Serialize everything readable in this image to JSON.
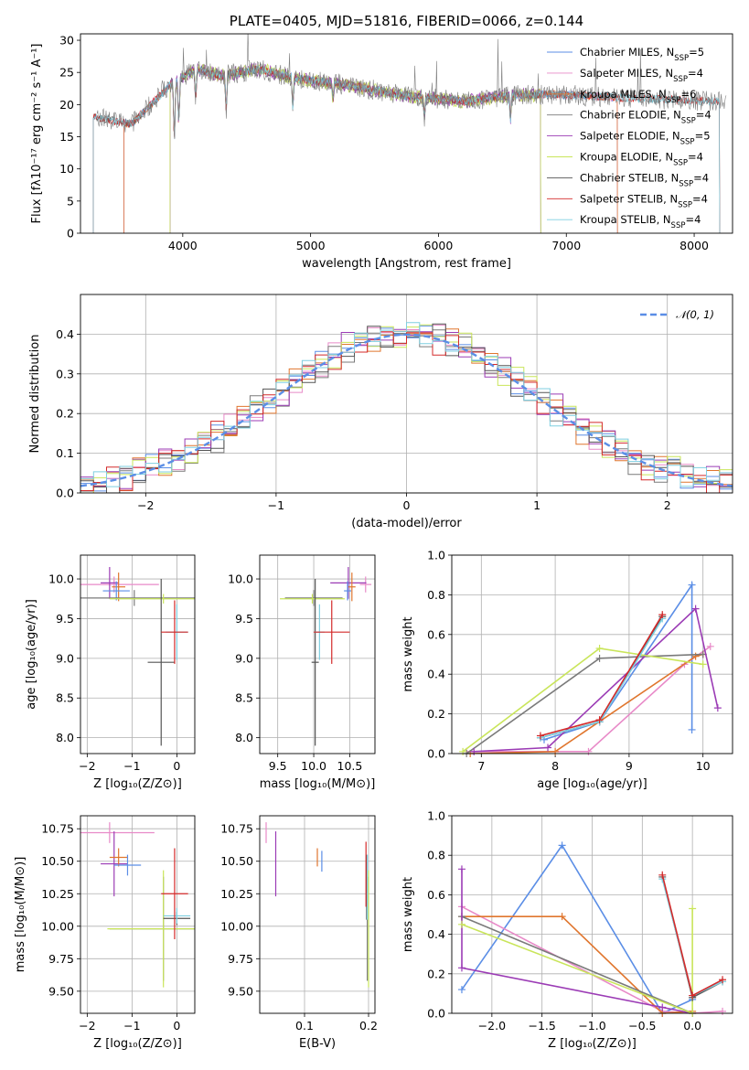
{
  "colors": {
    "Chabrier MILES": "#5b8ee6",
    "Salpeter MILES": "#e88ac8",
    "Kroupa MILES": "#e0762e",
    "Chabrier ELODIE": "#7a7a7a",
    "Salpeter ELODIE": "#9b3bb5",
    "Kroupa ELODIE": "#c9e55a",
    "Chabrier STELIB": "#555555",
    "Salpeter STELIB": "#d42a2a",
    "Kroupa STELIB": "#7fcfe0",
    "gauss": "#5b8ee6",
    "grid": "#b0b0b0"
  },
  "chart_data": [
    {
      "id": "spectrum",
      "type": "line",
      "title": "PLATE=0405, MJD=51816, FIBERID=0066, z=0.144",
      "xlabel": "wavelength [Angstrom, rest frame]",
      "ylabel": "Flux [fλ10⁻¹⁷ erg cm⁻² s⁻¹ A⁻¹]",
      "xlim": [
        3200,
        8300
      ],
      "ylim": [
        0,
        31
      ],
      "xticks": [
        "4000",
        "5000",
        "6000",
        "7000",
        "8000"
      ],
      "yticks": [
        "0",
        "5",
        "10",
        "15",
        "20",
        "25",
        "30"
      ],
      "grid": false,
      "legend_position": "top-right",
      "series": [
        {
          "name": "Chabrier MILES, N_SSP=5",
          "label_base": "Chabrier MILES, N",
          "label_sub": "SSP",
          "label_tail": "=5"
        },
        {
          "name": "Salpeter MILES, N_SSP=4",
          "label_base": "Salpeter MILES, N",
          "label_sub": "SSP",
          "label_tail": "=4"
        },
        {
          "name": "Kroupa MILES, N_SSP=6",
          "label_base": "Kroupa MILES, N",
          "label_sub": "SSP",
          "label_tail": "=6"
        },
        {
          "name": "Chabrier ELODIE, N_SSP=4",
          "label_base": "Chabrier ELODIE, N",
          "label_sub": "SSP",
          "label_tail": "=4"
        },
        {
          "name": "Salpeter ELODIE, N_SSP=5",
          "label_base": "Salpeter ELODIE, N",
          "label_sub": "SSP",
          "label_tail": "=5"
        },
        {
          "name": "Kroupa ELODIE, N_SSP=4",
          "label_base": "Kroupa ELODIE, N",
          "label_sub": "SSP",
          "label_tail": "=4"
        },
        {
          "name": "Chabrier STELIB, N_SSP=4",
          "label_base": "Chabrier STELIB, N",
          "label_sub": "SSP",
          "label_tail": "=4"
        },
        {
          "name": "Salpeter STELIB, N_SSP=4",
          "label_base": "Salpeter STELIB, N",
          "label_sub": "SSP",
          "label_tail": "=4"
        },
        {
          "name": "Kroupa STELIB, N_SSP=4",
          "label_base": "Kroupa STELIB, N",
          "label_sub": "SSP",
          "label_tail": "=4"
        }
      ],
      "model_start_wavelength": {
        "MILES": 3540,
        "ELODIE": 3900,
        "STELIB": 3300
      },
      "model_end_wavelength": {
        "MILES": 7400,
        "ELODIE": 6800,
        "STELIB": 8200
      },
      "continuum": [
        [
          3300,
          18
        ],
        [
          3600,
          17
        ],
        [
          3900,
          23
        ],
        [
          4100,
          25.5
        ],
        [
          4300,
          24.5
        ],
        [
          4600,
          25.5
        ],
        [
          4900,
          24
        ],
        [
          5300,
          23
        ],
        [
          5700,
          21.5
        ],
        [
          6200,
          20.5
        ],
        [
          6600,
          21.5
        ],
        [
          7000,
          21.5
        ],
        [
          7500,
          21
        ],
        [
          8200,
          20.5
        ]
      ]
    },
    {
      "id": "residuals",
      "type": "bar",
      "xlabel": "(data-model)/error",
      "ylabel": "Normed distribution",
      "xlim": [
        -2.5,
        2.5
      ],
      "ylim": [
        0,
        0.5
      ],
      "xticks": [
        "−2",
        "−1",
        "0",
        "1",
        "2"
      ],
      "yticks": [
        "0.0",
        "0.1",
        "0.2",
        "0.3",
        "0.4"
      ],
      "grid": true,
      "legend": "𝒩(0, 1)",
      "legend_position": "top-right",
      "bin_width": 0.1,
      "gauss_mean": 0,
      "gauss_sigma": 1,
      "offsets": [
        [
          0.01,
          -0.02,
          0.015,
          0.0,
          -0.01,
          0.02,
          -0.015,
          0.01
        ],
        [
          -0.015,
          0.02,
          -0.01,
          0.025,
          0.01,
          -0.02,
          0.015,
          -0.01
        ],
        [
          0.02,
          -0.01,
          0.02,
          -0.015,
          0.02,
          0.01,
          -0.02,
          0.015
        ],
        [
          -0.01,
          0.015,
          -0.02,
          0.01,
          -0.015,
          0.02,
          0.01,
          -0.02
        ],
        [
          0.025,
          -0.015,
          0.01,
          -0.02,
          0.03,
          -0.01,
          0.02,
          -0.015
        ],
        [
          -0.02,
          0.025,
          0.02,
          -0.01,
          0.015,
          0.03,
          -0.015,
          0.01
        ],
        [
          0.015,
          -0.02,
          -0.015,
          0.02,
          -0.01,
          0.015,
          0.02,
          -0.01
        ],
        [
          -0.01,
          0.01,
          0.025,
          -0.02,
          0.01,
          -0.015,
          0.01,
          0.02
        ],
        [
          0.02,
          0.015,
          -0.01,
          0.015,
          -0.02,
          0.01,
          -0.01,
          0.015
        ]
      ]
    },
    {
      "id": "age-vs-Z",
      "type": "scatter",
      "xlabel": "Z [log₁₀(Z/Z⊙)]",
      "ylabel": "age  [log₁₀(age/yr)]",
      "xlim": [
        -2.15,
        0.4
      ],
      "ylim": [
        7.8,
        10.3
      ],
      "xticks": [
        "−2",
        "−1",
        "0"
      ],
      "yticks": [
        "8.0",
        "8.5",
        "9.0",
        "9.5",
        "10.0"
      ],
      "grid": true,
      "points": [
        {
          "m": "Salpeter MILES",
          "x": -1.4,
          "xerr": 1.0,
          "y": 9.93,
          "yerr": 0.1
        },
        {
          "m": "Salpeter ELODIE",
          "x": -1.5,
          "xerr": 0.2,
          "y": 9.95,
          "yerr": 0.2
        },
        {
          "m": "Kroupa MILES",
          "x": -1.3,
          "xerr": 0.15,
          "y": 9.9,
          "yerr": 0.18
        },
        {
          "m": "Chabrier MILES",
          "x": -1.35,
          "xerr": 0.3,
          "y": 9.85,
          "yerr": 0.12
        },
        {
          "m": "Chabrier ELODIE",
          "x": -0.95,
          "xerr": 1.4,
          "y": 9.76,
          "yerr": 0.1
        },
        {
          "m": "Kroupa ELODIE",
          "x": -0.3,
          "xerr": 1.2,
          "y": 9.75,
          "yerr": 0.06
        },
        {
          "m": "Chabrier STELIB",
          "x": -0.35,
          "xerr": 0.3,
          "y": 8.95,
          "yerr": 1.05
        },
        {
          "m": "Kroupa STELIB",
          "x": 0.0,
          "xerr": 0.25,
          "y": 9.33,
          "yerr": 0.35
        },
        {
          "m": "Salpeter STELIB",
          "x": -0.05,
          "xerr": 0.3,
          "y": 9.33,
          "yerr": 0.4
        }
      ]
    },
    {
      "id": "age-vs-mass",
      "type": "scatter",
      "xlabel": "mass [log₁₀(M/M⊙)]",
      "xlim": [
        9.25,
        10.85
      ],
      "ylim": [
        7.8,
        10.3
      ],
      "xticks": [
        "9.5",
        "10.0",
        "10.5"
      ],
      "yticks": [
        "8.0",
        "8.5",
        "9.0",
        "9.5",
        "10.0"
      ],
      "grid": true,
      "points": [
        {
          "m": "Salpeter MILES",
          "x": 10.72,
          "xerr": 0.08,
          "y": 9.93,
          "yerr": 0.1
        },
        {
          "m": "Salpeter ELODIE",
          "x": 10.48,
          "xerr": 0.25,
          "y": 9.95,
          "yerr": 0.2
        },
        {
          "m": "Kroupa MILES",
          "x": 10.53,
          "xerr": 0.05,
          "y": 9.9,
          "yerr": 0.18
        },
        {
          "m": "Chabrier MILES",
          "x": 10.47,
          "xerr": 0.05,
          "y": 9.85,
          "yerr": 0.12
        },
        {
          "m": "Chabrier ELODIE",
          "x": 10.0,
          "xerr": 0.4,
          "y": 9.76,
          "yerr": 0.1
        },
        {
          "m": "Kroupa ELODIE",
          "x": 9.98,
          "xerr": 0.45,
          "y": 9.75,
          "yerr": 0.06
        },
        {
          "m": "Chabrier STELIB",
          "x": 10.02,
          "xerr": 0.05,
          "y": 8.95,
          "yerr": 1.05
        },
        {
          "m": "Kroupa STELIB",
          "x": 10.08,
          "xerr": 0.07,
          "y": 9.33,
          "yerr": 0.35
        },
        {
          "m": "Salpeter STELIB",
          "x": 10.25,
          "xerr": 0.25,
          "y": 9.33,
          "yerr": 0.4
        }
      ]
    },
    {
      "id": "weight-vs-age",
      "type": "line",
      "xlabel": "age  [log₁₀(age/yr)]",
      "ylabel": "mass weight",
      "xlim": [
        6.6,
        10.4
      ],
      "ylim": [
        0,
        1.0
      ],
      "xticks": [
        "7",
        "8",
        "9",
        "10"
      ],
      "yticks": [
        "0.0",
        "0.2",
        "0.4",
        "0.6",
        "0.8",
        "1.0"
      ],
      "grid": true,
      "series": [
        {
          "m": "Chabrier MILES",
          "x": [
            7.85,
            8.6,
            9.85,
            9.85
          ],
          "y": [
            0.07,
            0.16,
            0.85,
            0.12
          ]
        },
        {
          "m": "Salpeter MILES",
          "x": [
            6.8,
            8.45,
            9.75,
            10.1
          ],
          "y": [
            0.01,
            0.01,
            0.45,
            0.54
          ]
        },
        {
          "m": "Kroupa MILES",
          "x": [
            6.85,
            8.0,
            9.9,
            10.0
          ],
          "y": [
            0.0,
            0.01,
            0.49,
            0.5
          ]
        },
        {
          "m": "Chabrier ELODIE",
          "x": [
            6.8,
            8.6,
            10.0
          ],
          "y": [
            0.0,
            0.48,
            0.5
          ]
        },
        {
          "m": "Salpeter ELODIE",
          "x": [
            6.9,
            7.9,
            9.9,
            10.2
          ],
          "y": [
            0.01,
            0.03,
            0.73,
            0.23
          ]
        },
        {
          "m": "Kroupa ELODIE",
          "x": [
            6.75,
            8.6,
            10.0
          ],
          "y": [
            0.01,
            0.53,
            0.45
          ]
        },
        {
          "m": "Chabrier STELIB",
          "x": [
            7.8,
            8.6,
            9.45
          ],
          "y": [
            0.08,
            0.16,
            0.69
          ]
        },
        {
          "m": "Kroupa STELIB",
          "x": [
            7.8,
            8.6,
            9.45
          ],
          "y": [
            0.08,
            0.16,
            0.68
          ]
        },
        {
          "m": "Salpeter STELIB",
          "x": [
            7.8,
            8.6,
            9.45
          ],
          "y": [
            0.09,
            0.17,
            0.7
          ]
        }
      ]
    },
    {
      "id": "mass-vs-Z",
      "type": "scatter",
      "xlabel": "Z [log₁₀(Z/Z⊙)]",
      "ylabel": "mass [log₁₀(M/M⊙)]",
      "xlim": [
        -2.15,
        0.4
      ],
      "ylim": [
        9.33,
        10.85
      ],
      "xticks": [
        "−2",
        "−1",
        "0"
      ],
      "yticks": [
        "9.50",
        "9.75",
        "10.00",
        "10.25",
        "10.50",
        "10.75"
      ],
      "grid": true,
      "points": [
        {
          "m": "Salpeter MILES",
          "x": -1.5,
          "xerr": 1.0,
          "y": 10.72,
          "yerr": 0.08
        },
        {
          "m": "Salpeter ELODIE",
          "x": -1.4,
          "xerr": 0.3,
          "y": 10.48,
          "yerr": 0.25
        },
        {
          "m": "Kroupa MILES",
          "x": -1.3,
          "xerr": 0.2,
          "y": 10.53,
          "yerr": 0.07
        },
        {
          "m": "Chabrier MILES",
          "x": -1.1,
          "xerr": 0.3,
          "y": 10.47,
          "yerr": 0.08
        },
        {
          "m": "Chabrier ELODIE",
          "x": -0.3,
          "xerr": 1.2,
          "y": 9.98,
          "yerr": 0.4
        },
        {
          "m": "Kroupa ELODIE",
          "x": -0.3,
          "xerr": 1.25,
          "y": 9.98,
          "yerr": 0.45
        },
        {
          "m": "Chabrier STELIB",
          "x": 0.0,
          "xerr": 0.3,
          "y": 10.06,
          "yerr": 0.05
        },
        {
          "m": "Kroupa STELIB",
          "x": 0.0,
          "xerr": 0.3,
          "y": 10.08,
          "yerr": 0.06
        },
        {
          "m": "Salpeter STELIB",
          "x": -0.05,
          "xerr": 0.3,
          "y": 10.25,
          "yerr": 0.35
        }
      ]
    },
    {
      "id": "mass-vs-ebv",
      "type": "scatter",
      "xlabel": "E(B-V)",
      "xlim": [
        0.03,
        0.21
      ],
      "ylim": [
        9.33,
        10.85
      ],
      "xticks": [
        "0.1",
        "0.2"
      ],
      "yticks": [
        "9.50",
        "9.75",
        "10.00",
        "10.25",
        "10.50",
        "10.75"
      ],
      "grid": true,
      "points": [
        {
          "m": "Salpeter MILES",
          "x": 0.04,
          "y": 10.72,
          "yerr": 0.08
        },
        {
          "m": "Salpeter ELODIE",
          "x": 0.055,
          "y": 10.48,
          "yerr": 0.25
        },
        {
          "m": "Kroupa MILES",
          "x": 0.12,
          "y": 10.53,
          "yerr": 0.07
        },
        {
          "m": "Chabrier MILES",
          "x": 0.127,
          "y": 10.5,
          "yerr": 0.08
        },
        {
          "m": "Chabrier ELODIE",
          "x": 0.198,
          "y": 9.98,
          "yerr": 0.4
        },
        {
          "m": "Kroupa ELODIE",
          "x": 0.2,
          "y": 9.98,
          "yerr": 0.45
        },
        {
          "m": "Chabrier STELIB",
          "x": 0.197,
          "y": 10.3,
          "yerr": 0.25
        },
        {
          "m": "Kroupa STELIB",
          "x": 0.198,
          "y": 10.3,
          "yerr": 0.25
        },
        {
          "m": "Salpeter STELIB",
          "x": 0.196,
          "y": 10.4,
          "yerr": 0.25
        }
      ]
    },
    {
      "id": "weight-vs-Z",
      "type": "line",
      "xlabel": "Z [log₁₀(Z/Z⊙)]",
      "ylabel": "mass weight",
      "xlim": [
        -2.4,
        0.4
      ],
      "ylim": [
        0,
        1.0
      ],
      "xticks": [
        "−2.0",
        "−1.5",
        "−1.0",
        "−0.5",
        "0.0"
      ],
      "yticks": [
        "0.0",
        "0.2",
        "0.4",
        "0.6",
        "0.8",
        "1.0"
      ],
      "grid": true,
      "series": [
        {
          "m": "Chabrier MILES",
          "x": [
            -2.3,
            -1.3,
            -0.3,
            0.0
          ],
          "y": [
            0.12,
            0.85,
            0.0,
            0.07
          ]
        },
        {
          "m": "Salpeter MILES",
          "x": [
            -2.3,
            -0.3,
            0.0,
            0.3
          ],
          "y": [
            0.54,
            0.01,
            0.0,
            0.01
          ]
        },
        {
          "m": "Kroupa MILES",
          "x": [
            -2.3,
            -1.3,
            -0.3,
            0.0
          ],
          "y": [
            0.49,
            0.49,
            0.0,
            0.01
          ]
        },
        {
          "m": "Chabrier ELODIE",
          "x": [
            -2.3,
            0.0
          ],
          "y": [
            0.49,
            0.0
          ]
        },
        {
          "m": "Salpeter ELODIE",
          "x": [
            -2.3,
            -2.3,
            -0.3,
            0.0
          ],
          "y": [
            0.73,
            0.23,
            0.03,
            0.0
          ]
        },
        {
          "m": "Kroupa ELODIE",
          "x": [
            -2.3,
            0.0,
            0.0
          ],
          "y": [
            0.45,
            0.0,
            0.53
          ]
        },
        {
          "m": "Chabrier STELIB",
          "x": [
            -0.3,
            0.0,
            0.3
          ],
          "y": [
            0.69,
            0.08,
            0.16
          ]
        },
        {
          "m": "Kroupa STELIB",
          "x": [
            -0.3,
            0.0,
            0.3
          ],
          "y": [
            0.68,
            0.09,
            0.16
          ]
        },
        {
          "m": "Salpeter STELIB",
          "x": [
            -0.3,
            0.0,
            0.3
          ],
          "y": [
            0.7,
            0.09,
            0.17
          ]
        }
      ]
    }
  ]
}
